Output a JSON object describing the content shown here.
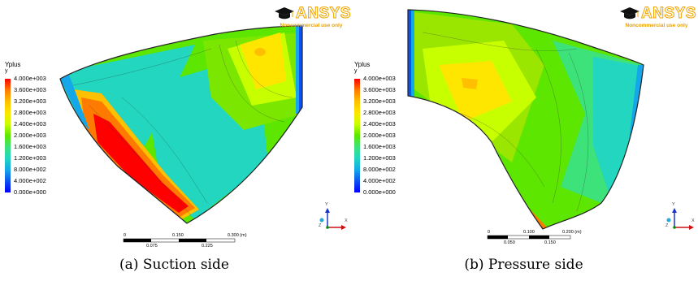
{
  "brand": {
    "name": "ANSYS",
    "note": "Noncommercial use only"
  },
  "legend": {
    "title": "Yplus",
    "subtitle": "y",
    "labels": [
      "4.000e+003",
      "3.600e+003",
      "3.200e+003",
      "2.800e+003",
      "2.400e+003",
      "2.000e+003",
      "1.600e+003",
      "1.200e+003",
      "8.000e+002",
      "4.000e+002",
      "0.000e+000"
    ]
  },
  "triad": {
    "y": "Y",
    "x": "X",
    "z": "Z"
  },
  "panels": [
    {
      "caption": "(a) Suction side",
      "scale": {
        "top_labels": [
          "0",
          "0.150",
          "0.300 (m)"
        ],
        "bottom_labels": [
          "0.075",
          "0.225"
        ]
      }
    },
    {
      "caption": "(b) Pressure side",
      "scale": {
        "top_labels": [
          "0",
          "0.100",
          "0.200 (m)"
        ],
        "bottom_labels": [
          "0.050",
          "0.150"
        ]
      }
    }
  ],
  "colors": {
    "max": "#ff0000",
    "high": "#ffc000",
    "mid": "#5ce600",
    "low": "#22d6c0",
    "min": "#0000ff"
  }
}
